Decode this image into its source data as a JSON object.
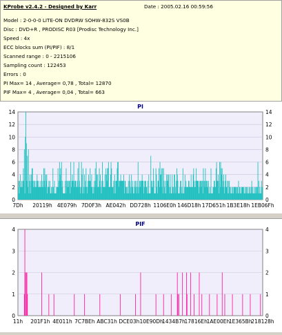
{
  "header": {
    "title": "KProbe v2.4.2 - Designed by Karr",
    "date": "Date : 2005.02.16 00:59:56"
  },
  "info": {
    "lines": [
      "Model : 2-0-0-0 LITE-ON DVDRW SOHW-832S  VS0B",
      "Disc : DVD+R , PRODISC R03 [Prodisc Technology Inc.]",
      "Speed : 4x",
      "ECC blocks sum (PI/PIF) : 8/1",
      "Scanned range : 0 - 2215106",
      "Sampling count : 122453",
      "Errors : 0",
      "PI Max= 14 , Average= 0,78 , Total= 12870",
      "PIF Max= 4 , Average= 0,04 , Total= 663"
    ]
  },
  "colors": {
    "pi_bar": "#20c0c0",
    "pif_bar": "#ff20a0",
    "title_text": "#000080",
    "plot_bg": "#f0eefa"
  },
  "chart_data": [
    {
      "type": "bar",
      "title": "PI",
      "ylim": [
        0,
        14
      ],
      "yticks": [
        0,
        2,
        4,
        6,
        8,
        10,
        12,
        14
      ],
      "xticklabels": [
        "7Dh",
        "20119h",
        "4E079h",
        "7D0F3h",
        "AE042h",
        "DD728h",
        "1106E0h",
        "146D18h",
        "17D651h",
        "1B3E18h",
        "1EB06Fh"
      ],
      "grid": true,
      "summary": {
        "max": 14,
        "average": 0.78,
        "total": 12870
      },
      "seed": 7
    },
    {
      "type": "bar",
      "title": "PIF",
      "ylim": [
        0,
        4
      ],
      "yticks": [
        0,
        1,
        2,
        3,
        4
      ],
      "xticklabels": [
        "11h",
        "201F1h",
        "4E011h",
        "7C7BEh",
        "ABC31h",
        "DCE03h",
        "10E90Dh",
        "1434B7h",
        "17816Eh",
        "1AE00Eh",
        "1E365Bh",
        "218128h"
      ],
      "grid": true,
      "summary": {
        "max": 4,
        "average": 0.04,
        "total": 663
      },
      "seed": 11
    }
  ]
}
